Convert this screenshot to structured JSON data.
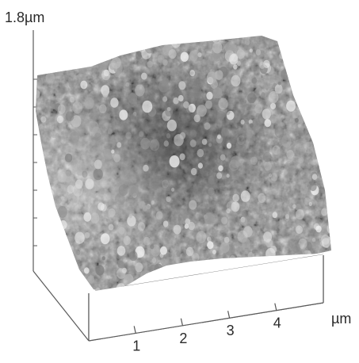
{
  "chart_data": {
    "type": "heatmap",
    "description_style": "3d-surface",
    "z_axis": {
      "max_label": "1.8µm",
      "max_value": 1.8,
      "unit": "µm"
    },
    "x_axis": {
      "unit_label": "µm",
      "tick_labels": [
        "1",
        "2",
        "3",
        "4"
      ],
      "ticks": [
        1,
        2,
        3,
        4
      ],
      "range": [
        0,
        5
      ]
    },
    "colors": {
      "high": "#f2f2f2",
      "low": "#3a3a3a",
      "axis": "#555555"
    }
  }
}
